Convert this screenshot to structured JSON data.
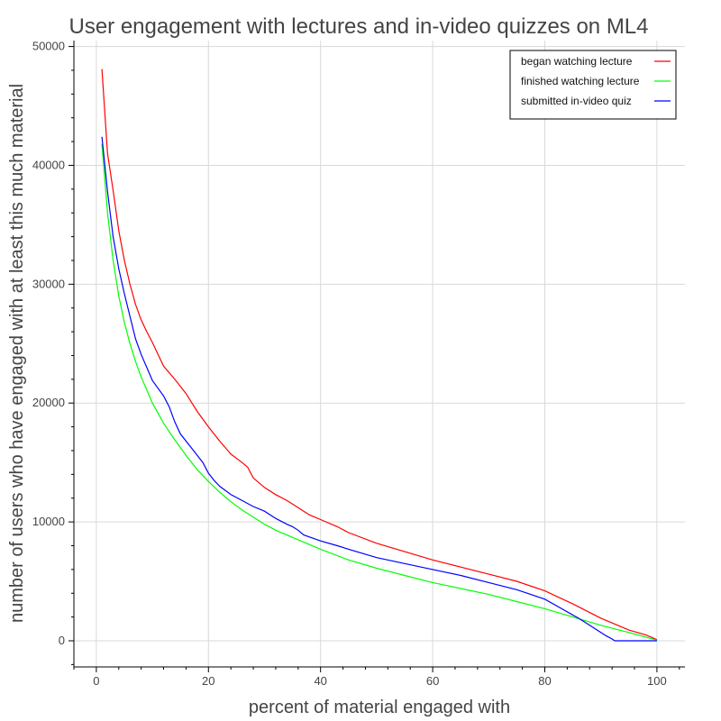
{
  "chart_data": {
    "type": "line",
    "title": "User engagement with lectures and in-video quizzes on ML4",
    "xlabel": "percent of material engaged with",
    "ylabel": "number of users who have engaged with at least this much material",
    "xlim": [
      -4,
      105
    ],
    "ylim": [
      -2200,
      50500
    ],
    "xticks": [
      0,
      20,
      40,
      60,
      80,
      100
    ],
    "yticks": [
      0,
      10000,
      20000,
      30000,
      40000,
      50000
    ],
    "grid": true,
    "legend": "top-right",
    "series": [
      {
        "name": "began watching lecture",
        "color": "#ff0000",
        "x": [
          1,
          2,
          3,
          4,
          5,
          6,
          7,
          8,
          9,
          10,
          12,
          14,
          16,
          18,
          20,
          22,
          24,
          26,
          27,
          28,
          30,
          32,
          34,
          36,
          38,
          40,
          43,
          45,
          50,
          55,
          60,
          65,
          70,
          75,
          80,
          85,
          90,
          95,
          98,
          100
        ],
        "y": [
          48100,
          41000,
          37900,
          34500,
          32000,
          30000,
          28300,
          27000,
          26000,
          25100,
          23100,
          22000,
          20800,
          19300,
          18000,
          16800,
          15700,
          15000,
          14600,
          13700,
          12900,
          12300,
          11800,
          11200,
          10600,
          10200,
          9600,
          9100,
          8200,
          7500,
          6800,
          6200,
          5600,
          5000,
          4200,
          3100,
          1900,
          900,
          500,
          100
        ]
      },
      {
        "name": "finished watching lecture",
        "color": "#00ff00",
        "x": [
          1,
          2,
          3,
          4,
          5,
          6,
          7,
          8,
          9,
          10,
          12,
          14,
          16,
          18,
          20,
          22,
          24,
          26,
          28,
          30,
          32,
          35,
          40,
          45,
          50,
          55,
          60,
          65,
          70,
          75,
          80,
          85,
          90,
          95,
          100
        ],
        "y": [
          41800,
          36000,
          32000,
          29000,
          26800,
          25000,
          23500,
          22200,
          21100,
          20000,
          18300,
          16900,
          15600,
          14400,
          13400,
          12500,
          11700,
          11000,
          10400,
          9800,
          9300,
          8700,
          7700,
          6800,
          6100,
          5500,
          4900,
          4400,
          3900,
          3300,
          2700,
          2000,
          1300,
          700,
          50
        ]
      },
      {
        "name": "submitted in-video quiz",
        "color": "#0000ff",
        "x": [
          1,
          2,
          3,
          4,
          5,
          6,
          7,
          8,
          9,
          10,
          12,
          13,
          14,
          15,
          17,
          19,
          20,
          21,
          22,
          24,
          26,
          28,
          30,
          32,
          34,
          35,
          36,
          37,
          40,
          43,
          45,
          50,
          55,
          60,
          65,
          70,
          75,
          80,
          83,
          86,
          88,
          90,
          91,
          92,
          92.5,
          100
        ],
        "y": [
          42400,
          37800,
          34000,
          31300,
          29200,
          27300,
          25400,
          24100,
          23000,
          21900,
          20600,
          19700,
          18400,
          17400,
          16200,
          15000,
          14100,
          13500,
          13000,
          12300,
          11800,
          11300,
          10900,
          10300,
          9800,
          9600,
          9300,
          8900,
          8400,
          8000,
          7700,
          7000,
          6500,
          6000,
          5500,
          4900,
          4300,
          3500,
          2700,
          1900,
          1300,
          700,
          400,
          150,
          0,
          0
        ]
      }
    ]
  }
}
